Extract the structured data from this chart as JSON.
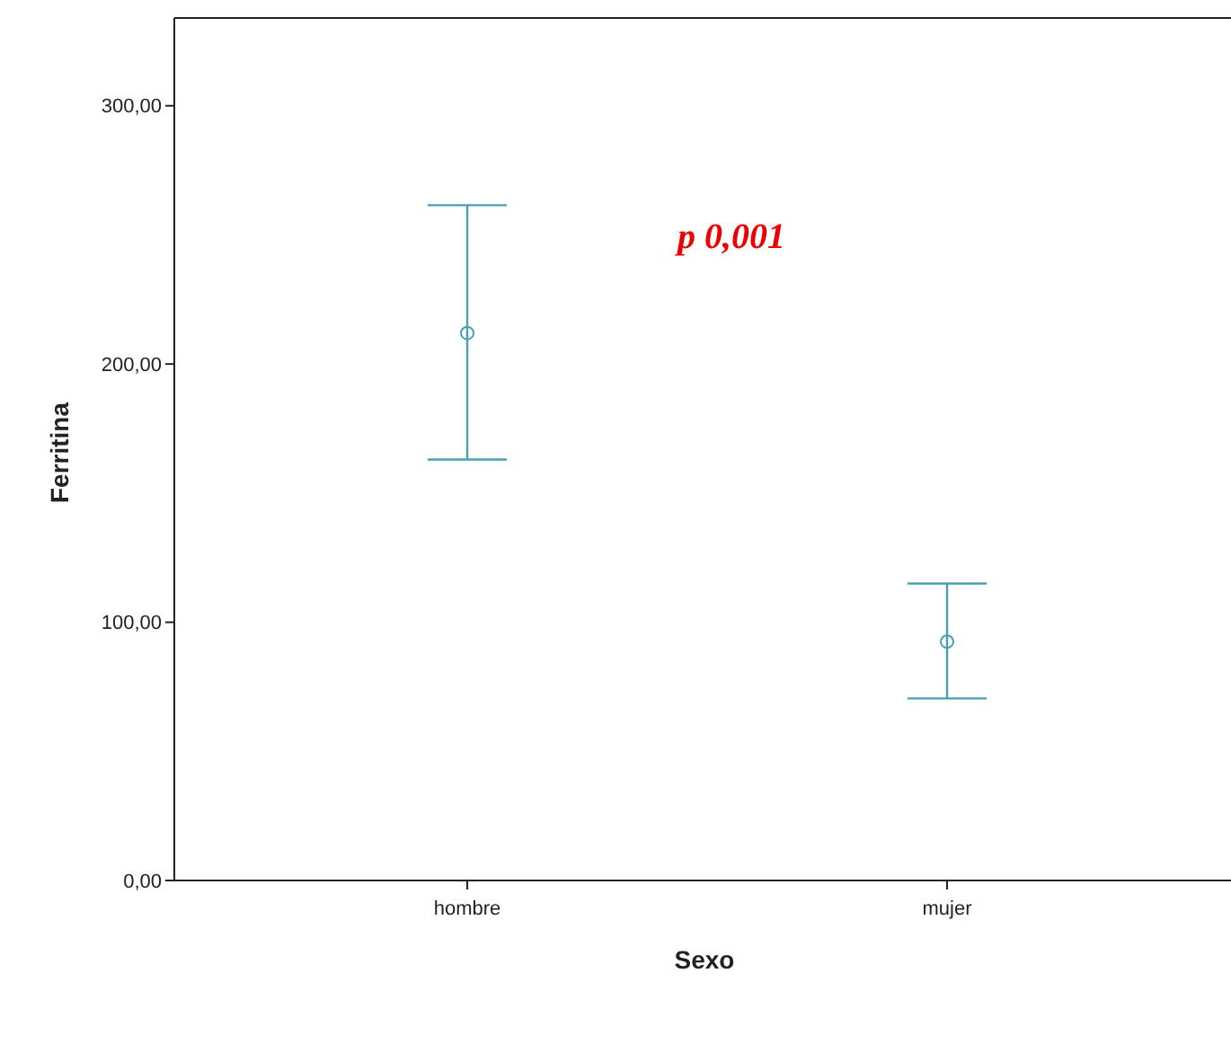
{
  "chart_data": {
    "type": "scatter",
    "xlabel": "Sexo",
    "ylabel": "Ferritina",
    "categories": [
      "hombre",
      "mujer"
    ],
    "values": [
      212,
      92.5
    ],
    "errors": [
      [
        163,
        261.5
      ],
      [
        70.5,
        115
      ]
    ],
    "color": "#4a9fb5",
    "marker": "circle",
    "ylim": [
      0,
      334
    ],
    "yticks": [
      {
        "value": 0,
        "label": "0,00"
      },
      {
        "value": 100,
        "label": "100,00"
      },
      {
        "value": 200,
        "label": "200,00"
      },
      {
        "value": 300,
        "label": "300,00"
      }
    ],
    "annotations": [
      "p 0,001"
    ],
    "grid": false
  }
}
